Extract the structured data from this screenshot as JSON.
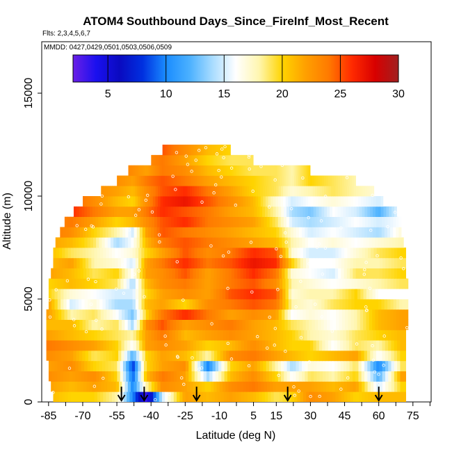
{
  "chart_data": {
    "type": "heatmap",
    "title": "ATOM4 Southbound Days_Since_FireInf_Most_Recent",
    "subtitle_flights": "Flts: 2,3,4,5,6,7",
    "subtitle_dates": "MMDD: 0427,0429,0501,0503,0506,0509",
    "xlabel": "Latitude (deg N)",
    "ylabel": "Altitude (m)",
    "xlim": [
      -88,
      83
    ],
    "ylim": [
      0,
      17500
    ],
    "x_ticks": [
      -85,
      -70,
      -55,
      -40,
      -25,
      -10,
      5,
      15,
      30,
      45,
      60,
      75
    ],
    "x_tick_labels": [
      "-85",
      "-70",
      "-55",
      "-40",
      "-25",
      "-10",
      "5",
      "15",
      "30",
      "45",
      "60",
      "75"
    ],
    "y_ticks": [
      0,
      5000,
      10000,
      15000
    ],
    "y_tick_labels": [
      "0",
      "5000",
      "10000",
      "15000"
    ],
    "colorbar": {
      "range": [
        2,
        30
      ],
      "ticks": [
        5,
        10,
        15,
        20,
        25,
        30
      ],
      "tick_labels": [
        "5",
        "10",
        "15",
        "20",
        "25",
        "30"
      ],
      "colors": [
        "#6a1fe6",
        "#1a10ef",
        "#0a0ac0",
        "#0030e0",
        "#1a8cff",
        "#4ab0ff",
        "#a8dcff",
        "#ffffff",
        "#fff6b0",
        "#ffd400",
        "#ffa000",
        "#ff7a00",
        "#ff2a00",
        "#d80000",
        "#a02020"
      ]
    },
    "profile_markers_lat": [
      -53,
      -43,
      -20,
      20,
      60
    ],
    "altitude_band_edges": [
      0,
      500,
      1000,
      1500,
      2000,
      2500,
      3000,
      3500,
      4000,
      4500,
      5000,
      5500,
      6000,
      6500,
      7000,
      7500,
      8000,
      8500,
      9000,
      9500,
      10000,
      10500,
      11000,
      11500,
      12000,
      12500
    ],
    "band_lat_ranges": [
      [
        -83,
        72
      ],
      [
        -84,
        72
      ],
      [
        -85,
        72
      ],
      [
        -85,
        72
      ],
      [
        -86,
        72
      ],
      [
        -86,
        72
      ],
      [
        -86,
        72
      ],
      [
        -86,
        73
      ],
      [
        -86,
        73
      ],
      [
        -85,
        73
      ],
      [
        -85,
        73
      ],
      [
        -85,
        73
      ],
      [
        -84,
        72
      ],
      [
        -83,
        72
      ],
      [
        -83,
        72
      ],
      [
        -82,
        71
      ],
      [
        -80,
        70
      ],
      [
        -78,
        70
      ],
      [
        -74,
        68
      ],
      [
        -70,
        62
      ],
      [
        -62,
        58
      ],
      [
        -55,
        50
      ],
      [
        -50,
        30
      ],
      [
        -40,
        5
      ],
      [
        -35,
        -5
      ]
    ],
    "lat_nodes": [
      -85,
      -75,
      -65,
      -55,
      -48,
      -42,
      -35,
      -25,
      -15,
      -5,
      5,
      15,
      22,
      30,
      40,
      50,
      60,
      70
    ],
    "values": [
      [
        21,
        20,
        20,
        18,
        10,
        3,
        15,
        22,
        21,
        22,
        21,
        19,
        20,
        23,
        22,
        20,
        21,
        21
      ],
      [
        22,
        21,
        22,
        21,
        10,
        18,
        23,
        22,
        20,
        23,
        24,
        22,
        22,
        22,
        21,
        22,
        15,
        20
      ],
      [
        23,
        22,
        23,
        20,
        9,
        21,
        24,
        22,
        14,
        21,
        23,
        20,
        16,
        19,
        18,
        20,
        12,
        22
      ],
      [
        22,
        23,
        20,
        19,
        8,
        20,
        22,
        23,
        10,
        20,
        22,
        18,
        14,
        17,
        16,
        19,
        10,
        19
      ],
      [
        23,
        22,
        19,
        20,
        12,
        20,
        22,
        21,
        18,
        23,
        24,
        22,
        21,
        20,
        21,
        22,
        16,
        20
      ],
      [
        24,
        23,
        22,
        20,
        16,
        22,
        23,
        22,
        20,
        21,
        23,
        21,
        20,
        20,
        16,
        19,
        18,
        21
      ],
      [
        22,
        21,
        20,
        19,
        18,
        22,
        24,
        21,
        22,
        23,
        22,
        21,
        20,
        18,
        17,
        19,
        20,
        21
      ],
      [
        21,
        21,
        18,
        19,
        14,
        23,
        25,
        22,
        23,
        24,
        22,
        21,
        19,
        18,
        16,
        18,
        21,
        22
      ],
      [
        22,
        18,
        19,
        16,
        13,
        20,
        24,
        26,
        24,
        22,
        23,
        22,
        16,
        17,
        16,
        18,
        21,
        22
      ],
      [
        22,
        15,
        17,
        14,
        14,
        21,
        22,
        20,
        23,
        24,
        25,
        24,
        18,
        17,
        19,
        20,
        20,
        18
      ],
      [
        20,
        17,
        16,
        15,
        15,
        20,
        22,
        23,
        22,
        25,
        26,
        25,
        17,
        18,
        18,
        20,
        16,
        16
      ],
      [
        20,
        21,
        20,
        19,
        14,
        21,
        23,
        24,
        22,
        24,
        25,
        23,
        18,
        17,
        16,
        17,
        18,
        19
      ],
      [
        22,
        21,
        19,
        20,
        16,
        22,
        23,
        25,
        22,
        24,
        26,
        24,
        17,
        16,
        15,
        19,
        19,
        20
      ],
      [
        21,
        22,
        18,
        17,
        15,
        22,
        24,
        26,
        24,
        25,
        27,
        26,
        20,
        16,
        16,
        18,
        18,
        19
      ],
      [
        21,
        19,
        18,
        16,
        17,
        20,
        22,
        25,
        23,
        24,
        26,
        25,
        17,
        15,
        15,
        17,
        19,
        20
      ],
      [
        22,
        21,
        19,
        14,
        16,
        21,
        24,
        25,
        24,
        23,
        22,
        21,
        18,
        16,
        17,
        16,
        17,
        18
      ],
      [
        24,
        23,
        20,
        18,
        15,
        22,
        25,
        24,
        23,
        22,
        21,
        20,
        17,
        15,
        16,
        15,
        14,
        17
      ],
      [
        23,
        24,
        22,
        20,
        21,
        23,
        25,
        26,
        24,
        23,
        22,
        19,
        15,
        14,
        15,
        16,
        15,
        16
      ],
      [
        25,
        26,
        24,
        22,
        22,
        24,
        26,
        25,
        24,
        22,
        21,
        18,
        14,
        13,
        16,
        15,
        12,
        16
      ],
      [
        24,
        25,
        23,
        21,
        20,
        23,
        26,
        27,
        25,
        23,
        21,
        17,
        15,
        16,
        17,
        16,
        15,
        17
      ],
      [
        23,
        24,
        23,
        22,
        21,
        23,
        25,
        26,
        24,
        22,
        20,
        19,
        17,
        18,
        19,
        18,
        17,
        18
      ],
      [
        22,
        23,
        24,
        23,
        22,
        24,
        25,
        24,
        22,
        21,
        20,
        19,
        18,
        20,
        19,
        18,
        18,
        19
      ],
      [
        21,
        22,
        23,
        24,
        23,
        22,
        24,
        23,
        21,
        20,
        19,
        19,
        18,
        20,
        19,
        18,
        18,
        19
      ],
      [
        22,
        23,
        24,
        25,
        24,
        23,
        24,
        22,
        20,
        19,
        19,
        18,
        18,
        19,
        19,
        18,
        18,
        19
      ],
      [
        25,
        25,
        26,
        26,
        27,
        26,
        25,
        23,
        21,
        20,
        20,
        20,
        20,
        20,
        20,
        20,
        20,
        20
      ]
    ]
  }
}
